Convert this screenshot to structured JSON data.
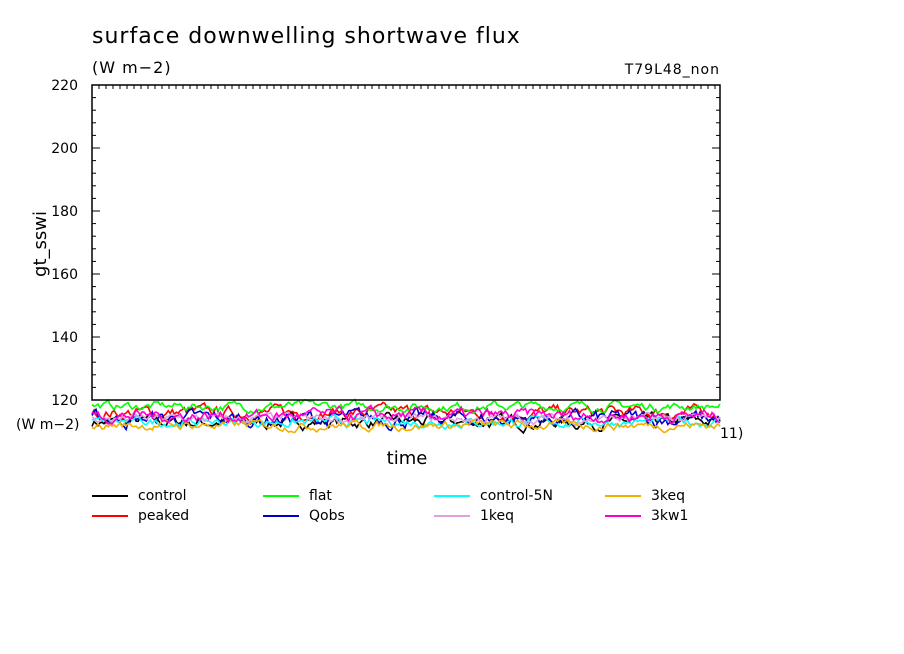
{
  "title": "surface downwelling shortwave flux",
  "units": "(W m−2)",
  "run_label": "T79L48_non",
  "chart_data": {
    "type": "line",
    "ylabel": "gt_sswi",
    "xlabel": "time",
    "ylim": [
      110,
      220
    ],
    "yticks": [
      120,
      140,
      160,
      180,
      200,
      220
    ],
    "left_clipped_label": "(W m−2)",
    "right_clipped_label": "11)",
    "series": [
      {
        "name": "control",
        "color": "#000000",
        "mean": 113,
        "amplitude": 4
      },
      {
        "name": "peaked",
        "color": "#ff0000",
        "mean": 116,
        "amplitude": 4
      },
      {
        "name": "flat",
        "color": "#00ff00",
        "mean": 118,
        "amplitude": 3
      },
      {
        "name": "Qobs",
        "color": "#0000cc",
        "mean": 114,
        "amplitude": 5
      },
      {
        "name": "control-5N",
        "color": "#00ffff",
        "mean": 113,
        "amplitude": 3
      },
      {
        "name": "1keq",
        "color": "#e0a0e0",
        "mean": 114,
        "amplitude": 3
      },
      {
        "name": "3keq",
        "color": "#f0b000",
        "mean": 112,
        "amplitude": 3
      },
      {
        "name": "3kw1",
        "color": "#ff00cc",
        "mean": 115,
        "amplitude": 4
      }
    ]
  }
}
